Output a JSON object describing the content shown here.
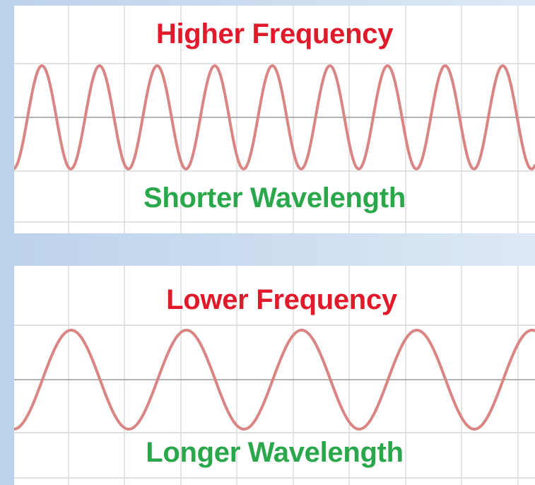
{
  "colors": {
    "title": "#e01a2a",
    "caption": "#2aa64b",
    "wave": "#d98584",
    "grid": "#d9d9d9",
    "axis": "#9a9a9a",
    "background": "#c9dbef"
  },
  "top_panel": {
    "title": "Higher Frequency",
    "caption": "Shorter Wavelength",
    "wave": {
      "cycles_shown": 9,
      "relative_frequency": "high"
    }
  },
  "bottom_panel": {
    "title": "Lower Frequency",
    "caption": "Longer Wavelength",
    "wave": {
      "cycles_shown": 4.5,
      "relative_frequency": "low"
    }
  }
}
